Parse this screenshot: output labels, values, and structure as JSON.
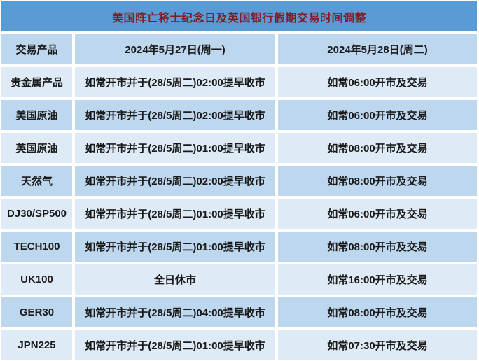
{
  "title": "美国阵亡将士纪念日及英国银行假期交易时间调整",
  "colors": {
    "title_bg": "#5B9BD5",
    "title_text": "#7E1E23",
    "row_dark": "#BDD7EE",
    "row_light": "#DEEBF7",
    "body_text": "#1A1A1A",
    "gap": "#FFFFFF"
  },
  "table": {
    "header": {
      "product": "交易产品",
      "monday": "2024年5月27日(周一)",
      "tuesday": "2024年5月28日(周二)"
    },
    "rows": [
      {
        "product": "贵金属产品",
        "mon": "如常开市并于(28/5周二)02:00提早收市",
        "tue": "如常06:00开市及交易"
      },
      {
        "product": "美国原油",
        "mon": "如常开市并于(28/5周二)02:00提早收市",
        "tue": "如常06:00开市及交易"
      },
      {
        "product": "英国原油",
        "mon": "如常开市并于(28/5周二)01:00提早收市",
        "tue": "如常08:00开市及交易"
      },
      {
        "product": "天然气",
        "mon": "如常开市并于(28/5周二)02:00提早收市",
        "tue": "如常08:00开市及交易"
      },
      {
        "product": "DJ30/SP500",
        "mon": "如常开市并于(28/5周二)01:00提早收市",
        "tue": "如常06:00开市及交易"
      },
      {
        "product": "TECH100",
        "mon": "如常开市并于(28/5周二)01:00提早收市",
        "tue": "如常08:00开市及交易"
      },
      {
        "product": "UK100",
        "mon": "全日休市",
        "tue": "如常16:00开市及交易"
      },
      {
        "product": "GER30",
        "mon": "如常开市并于(28/5周二)04:00提早收市",
        "tue": "如常08:00开市及交易"
      },
      {
        "product": "JPN225",
        "mon": "如常开市并于(28/5周二)01:00提早收市",
        "tue": "如常07:30开市及交易"
      }
    ]
  }
}
